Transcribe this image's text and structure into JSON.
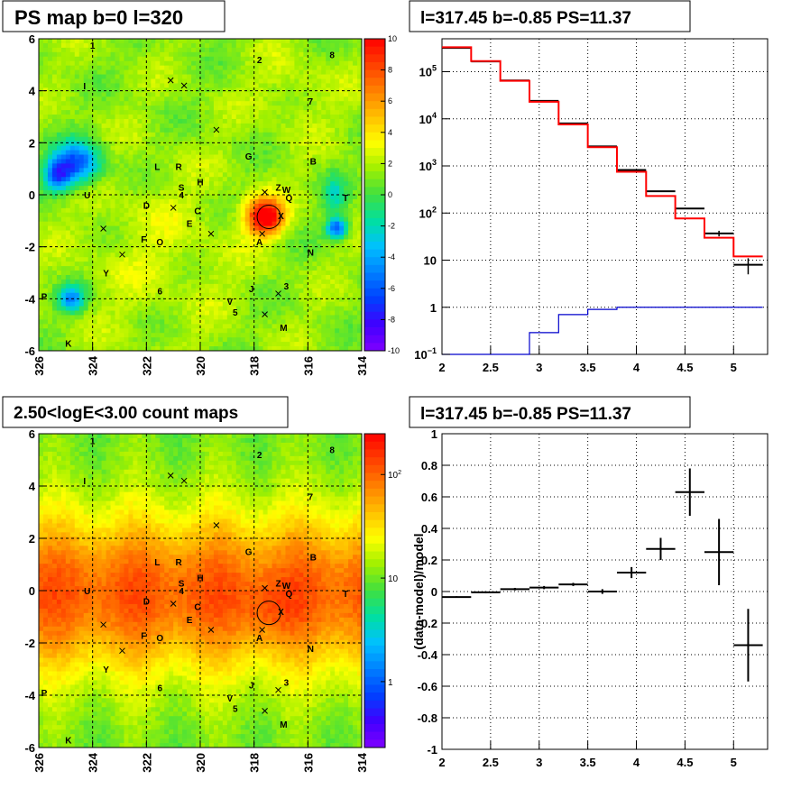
{
  "chart_data": [
    {
      "type": "heatmap",
      "title": "PS map b=0 l=320",
      "xlim": [
        326,
        314
      ],
      "ylim": [
        -6,
        6
      ],
      "x_ticks": [
        "326",
        "324",
        "322",
        "320",
        "318",
        "316",
        "314"
      ],
      "y_ticks": [
        "6",
        "4",
        "2",
        "0",
        "-2",
        "-4",
        "-6"
      ],
      "colorbar": {
        "range": [
          -10,
          10
        ],
        "ticks": [
          "10",
          "8",
          "6",
          "4",
          "2",
          "0",
          "-2",
          "-4",
          "-6",
          "-8",
          "-10"
        ],
        "palette": [
          "#ff0000",
          "#ff4000",
          "#ff8000",
          "#ffc000",
          "#ffff00",
          "#a0f000",
          "#40e040",
          "#00e0a0",
          "#00c0ff",
          "#0080ff",
          "#0040ff",
          "#4000ff",
          "#8000ff"
        ]
      },
      "sources": [
        {
          "label": "1",
          "l": 324.0,
          "b": 5.75
        },
        {
          "label": "2",
          "l": 317.8,
          "b": 5.2
        },
        {
          "label": "8",
          "l": 315.1,
          "b": 5.4
        },
        {
          "label": "I",
          "l": 324.3,
          "b": 4.2
        },
        {
          "label": "7",
          "l": 315.9,
          "b": 3.6
        },
        {
          "label": "G",
          "l": 318.2,
          "b": 1.5
        },
        {
          "label": "B",
          "l": 315.8,
          "b": 1.3
        },
        {
          "label": "L",
          "l": 321.6,
          "b": 1.1
        },
        {
          "label": "R",
          "l": 320.8,
          "b": 1.1
        },
        {
          "label": "H",
          "l": 320.0,
          "b": 0.5
        },
        {
          "label": "S",
          "l": 320.7,
          "b": 0.3
        },
        {
          "label": "4",
          "l": 320.7,
          "b": 0.0
        },
        {
          "label": "Z",
          "l": 317.1,
          "b": 0.3
        },
        {
          "label": "W",
          "l": 316.8,
          "b": 0.2
        },
        {
          "label": "Q",
          "l": 316.7,
          "b": -0.1
        },
        {
          "label": "T",
          "l": 314.6,
          "b": -0.1
        },
        {
          "label": "U",
          "l": 324.2,
          "b": 0.0
        },
        {
          "label": "D",
          "l": 322.0,
          "b": -0.4
        },
        {
          "label": "C",
          "l": 320.1,
          "b": -0.6
        },
        {
          "label": "X",
          "l": 317.0,
          "b": -0.8
        },
        {
          "label": "E",
          "l": 320.4,
          "b": -1.1
        },
        {
          "label": "F",
          "l": 322.1,
          "b": -1.7
        },
        {
          "label": "O",
          "l": 321.5,
          "b": -1.8
        },
        {
          "label": "A",
          "l": 317.8,
          "b": -1.8
        },
        {
          "label": "N",
          "l": 315.9,
          "b": -2.2
        },
        {
          "label": "Y",
          "l": 323.5,
          "b": -3.0
        },
        {
          "label": "6",
          "l": 321.5,
          "b": -3.7
        },
        {
          "label": "J",
          "l": 318.1,
          "b": -3.6
        },
        {
          "label": "3",
          "l": 316.8,
          "b": -3.5
        },
        {
          "label": "P",
          "l": 325.8,
          "b": -3.9
        },
        {
          "label": "V",
          "l": 318.9,
          "b": -4.1
        },
        {
          "label": "5",
          "l": 318.7,
          "b": -4.5
        },
        {
          "label": "M",
          "l": 316.9,
          "b": -5.1
        },
        {
          "label": "K",
          "l": 324.9,
          "b": -5.7
        }
      ],
      "crosses": [
        {
          "l": 321.1,
          "b": 4.4
        },
        {
          "l": 320.6,
          "b": 4.2
        },
        {
          "l": 319.4,
          "b": 2.5
        },
        {
          "l": 317.6,
          "b": 0.1
        },
        {
          "l": 321.0,
          "b": -0.5
        },
        {
          "l": 323.6,
          "b": -1.3
        },
        {
          "l": 319.6,
          "b": -1.5
        },
        {
          "l": 322.9,
          "b": -2.3
        },
        {
          "l": 317.7,
          "b": -1.5
        },
        {
          "l": 317.1,
          "b": -3.8
        },
        {
          "l": 317.6,
          "b": -4.6
        }
      ],
      "circle": {
        "l": 317.45,
        "b": -0.85
      }
    },
    {
      "type": "line",
      "title": "l=317.45 b=-0.85 PS=11.37",
      "xlim": [
        2,
        5.35
      ],
      "y_scale": "log",
      "ylim": [
        0.1,
        500000
      ],
      "x_ticks": [
        "2",
        "2.5",
        "3",
        "3.5",
        "4",
        "4.5",
        "5"
      ],
      "y_tick_labels": [
        {
          "v": 100000,
          "base": "10",
          "exp": "5"
        },
        {
          "v": 10000,
          "base": "10",
          "exp": "4"
        },
        {
          "v": 1000,
          "base": "10",
          "exp": "3"
        },
        {
          "v": 100,
          "base": "10",
          "exp": "2"
        },
        {
          "v": 10,
          "base": "10",
          "exp": ""
        },
        {
          "v": 1,
          "base": "1",
          "exp": ""
        },
        {
          "v": 0.1,
          "base": "10",
          "exp": "−1"
        }
      ],
      "bin_edges": [
        2.0,
        2.3,
        2.6,
        2.9,
        3.2,
        3.5,
        3.8,
        4.1,
        4.4,
        4.7,
        5.0,
        5.3
      ],
      "series": [
        {
          "style": "data",
          "color": "#000000",
          "values": [
            320000,
            165000,
            65000,
            24000,
            8000,
            2600,
            820,
            290,
            125,
            37,
            8
          ],
          "errors": [
            0,
            0,
            0,
            0,
            0,
            0,
            0,
            0,
            0,
            5,
            3
          ]
        },
        {
          "style": "step",
          "color": "#ff0000",
          "values": [
            330000,
            168000,
            64000,
            23000,
            7600,
            2500,
            750,
            230,
            77,
            30,
            12
          ]
        },
        {
          "style": "step",
          "color": "#0000cc",
          "values": [
            0.1,
            0.1,
            0.1,
            0.29,
            0.7,
            0.9,
            1.0,
            1.0,
            1.0,
            1.0,
            1.0
          ]
        }
      ]
    },
    {
      "type": "heatmap",
      "title": "2.50<logE<3.00 count maps",
      "xlim": [
        326,
        314
      ],
      "ylim": [
        -6,
        6
      ],
      "x_ticks": [
        "326",
        "324",
        "322",
        "320",
        "318",
        "316",
        "314"
      ],
      "y_ticks": [
        "6",
        "4",
        "2",
        "0",
        "-2",
        "-4",
        "-6"
      ],
      "colorbar": {
        "scale": "log",
        "ticks": [
          {
            "base": "10",
            "exp": "2",
            "frac": 0.13
          },
          {
            "base": "10",
            "exp": "",
            "frac": 0.46
          },
          {
            "base": "1",
            "exp": "",
            "frac": 0.79
          }
        ],
        "palette": [
          "#ff0000",
          "#ff4000",
          "#ff8000",
          "#ffc000",
          "#ffff00",
          "#a0f000",
          "#40e040",
          "#00e0a0",
          "#00c0ff",
          "#0080ff",
          "#0040ff",
          "#4000ff",
          "#8000ff"
        ]
      },
      "sources_ref": 0,
      "circle": {
        "l": 317.45,
        "b": -0.85
      }
    },
    {
      "type": "scatter",
      "title": "l=317.45 b=-0.85 PS=11.37",
      "ylabel": "(data-model)/model",
      "xlim": [
        2,
        5.35
      ],
      "ylim": [
        -1,
        1
      ],
      "x_ticks": [
        "2",
        "2.5",
        "3",
        "3.5",
        "4",
        "4.5",
        "5"
      ],
      "y_ticks": [
        "1",
        "0.8",
        "0.6",
        "0.4",
        "0.2",
        "0",
        "-0.2",
        "-0.4",
        "-0.6",
        "-0.8",
        "-1"
      ],
      "points": [
        {
          "x": 2.15,
          "y": -0.035,
          "err": 0.005
        },
        {
          "x": 2.45,
          "y": -0.005,
          "err": 0.006
        },
        {
          "x": 2.75,
          "y": 0.015,
          "err": 0.008
        },
        {
          "x": 3.05,
          "y": 0.025,
          "err": 0.01
        },
        {
          "x": 3.35,
          "y": 0.045,
          "err": 0.01
        },
        {
          "x": 3.65,
          "y": 0.0,
          "err": 0.015
        },
        {
          "x": 3.95,
          "y": 0.12,
          "err": 0.035
        },
        {
          "x": 4.25,
          "y": 0.27,
          "err": 0.07
        },
        {
          "x": 4.55,
          "y": 0.63,
          "err": 0.15
        },
        {
          "x": 4.85,
          "y": 0.25,
          "err": 0.21
        },
        {
          "x": 5.15,
          "y": -0.34,
          "err": 0.23
        }
      ]
    }
  ]
}
